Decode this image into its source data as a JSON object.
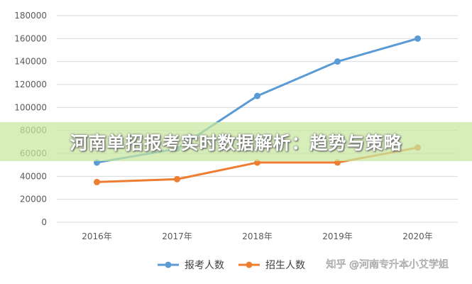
{
  "banner": {
    "title": "河南单招报考实时数据解析：趋势与策略"
  },
  "watermark": {
    "text": "知乎 @河南专升本小艾学姐"
  },
  "colors": {
    "series1": "#5b9bd5",
    "series2": "#ed7d31",
    "grid": "#d9d9d9",
    "banner": "#c8e8a0"
  },
  "chart_data": {
    "type": "line",
    "title": "",
    "xlabel": "",
    "ylabel": "",
    "categories": [
      "2016年",
      "2017年",
      "2018年",
      "2019年",
      "2020年"
    ],
    "ylim": [
      0,
      180000
    ],
    "yticks": [
      "0",
      "20000",
      "40000",
      "60000",
      "80000",
      "100000",
      "120000",
      "140000",
      "160000",
      "180000"
    ],
    "grid": true,
    "legend_position": "bottom-center",
    "series": [
      {
        "name": "报考人数",
        "color": "#5b9bd5",
        "values": [
          52000,
          64000,
          110000,
          140000,
          160000
        ]
      },
      {
        "name": "招生人数",
        "color": "#ed7d31",
        "values": [
          35000,
          37500,
          52000,
          52000,
          65000
        ]
      }
    ]
  }
}
